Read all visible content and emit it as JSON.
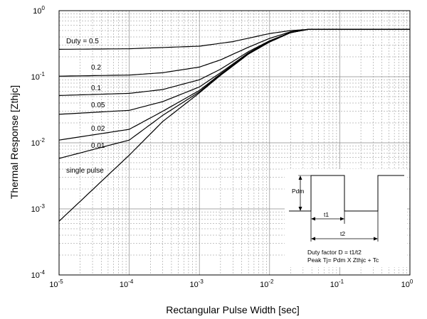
{
  "chart_data": {
    "type": "line",
    "title": "",
    "xlabel": "Rectangular Pulse Width [sec]",
    "ylabel": "Thermal Response [Zthjc]",
    "xscale": "log",
    "yscale": "log",
    "xlim": [
      1e-05,
      1
    ],
    "ylim": [
      0.0001,
      1
    ],
    "grid": true,
    "x_tick_labels": [
      {
        "value": 1e-05,
        "base": "10",
        "exp": "-5"
      },
      {
        "value": 0.0001,
        "base": "10",
        "exp": "-4"
      },
      {
        "value": 0.001,
        "base": "10",
        "exp": "-3"
      },
      {
        "value": 0.01,
        "base": "10",
        "exp": "-2"
      },
      {
        "value": 0.1,
        "base": "10",
        "exp": "-1"
      },
      {
        "value": 1,
        "base": "10",
        "exp": "0"
      }
    ],
    "y_tick_labels": [
      {
        "value": 0.0001,
        "base": "10",
        "exp": "-4"
      },
      {
        "value": 0.001,
        "base": "10",
        "exp": "-3"
      },
      {
        "value": 0.01,
        "base": "10",
        "exp": "-2"
      },
      {
        "value": 0.1,
        "base": "10",
        "exp": "-1"
      },
      {
        "value": 1,
        "base": "10",
        "exp": "0"
      }
    ],
    "series": [
      {
        "name": "Duty = 0.5",
        "duty": 0.5,
        "x": [
          1e-05,
          0.0001,
          0.001,
          0.003,
          0.01,
          0.02,
          0.035,
          1
        ],
        "y": [
          0.26,
          0.265,
          0.29,
          0.34,
          0.45,
          0.5,
          0.52,
          0.52
        ]
      },
      {
        "name": "0.2",
        "duty": 0.2,
        "x": [
          1e-05,
          0.0001,
          0.0003,
          0.001,
          0.002,
          0.005,
          0.01,
          0.02,
          0.035,
          1
        ],
        "y": [
          0.102,
          0.106,
          0.115,
          0.14,
          0.18,
          0.28,
          0.38,
          0.48,
          0.52,
          0.52
        ]
      },
      {
        "name": "0.1",
        "duty": 0.1,
        "x": [
          1e-05,
          0.0001,
          0.0003,
          0.001,
          0.002,
          0.005,
          0.01,
          0.02,
          0.035,
          1
        ],
        "y": [
          0.052,
          0.056,
          0.064,
          0.09,
          0.13,
          0.24,
          0.35,
          0.47,
          0.52,
          0.52
        ]
      },
      {
        "name": "0.05",
        "duty": 0.05,
        "x": [
          1e-05,
          0.0001,
          0.0003,
          0.001,
          0.002,
          0.005,
          0.01,
          0.02,
          0.035,
          1
        ],
        "y": [
          0.027,
          0.031,
          0.042,
          0.07,
          0.115,
          0.23,
          0.345,
          0.47,
          0.52,
          0.52
        ]
      },
      {
        "name": "0.02",
        "duty": 0.02,
        "x": [
          1e-05,
          0.0001,
          0.0003,
          0.001,
          0.002,
          0.005,
          0.01,
          0.02,
          0.035,
          1
        ],
        "y": [
          0.011,
          0.016,
          0.03,
          0.062,
          0.11,
          0.225,
          0.34,
          0.465,
          0.52,
          0.52
        ]
      },
      {
        "name": "0.01",
        "duty": 0.01,
        "x": [
          1e-05,
          0.0001,
          0.0003,
          0.001,
          0.002,
          0.005,
          0.01,
          0.02,
          0.035,
          1
        ],
        "y": [
          0.0058,
          0.011,
          0.026,
          0.059,
          0.108,
          0.222,
          0.338,
          0.465,
          0.52,
          0.52
        ]
      },
      {
        "name": "single pulse",
        "duty": 0,
        "x": [
          1e-05,
          0.0001,
          0.0003,
          0.001,
          0.002,
          0.005,
          0.01,
          0.02,
          0.035,
          1
        ],
        "y": [
          0.00065,
          0.0065,
          0.021,
          0.057,
          0.105,
          0.22,
          0.335,
          0.465,
          0.52,
          0.52
        ]
      }
    ],
    "annotations": {
      "curve_labels": [
        "Duty = 0.5",
        "0.2",
        "0.1",
        "0.05",
        "0.02",
        "0.01",
        "single pulse"
      ],
      "inset": {
        "pdm": "Pdm",
        "t1": "t1",
        "t2": "t2",
        "duty_factor": "Duty factor D = t1/t2",
        "peak_tj": "Peak Tj= Pdm X Zthjc + Tc"
      }
    }
  }
}
